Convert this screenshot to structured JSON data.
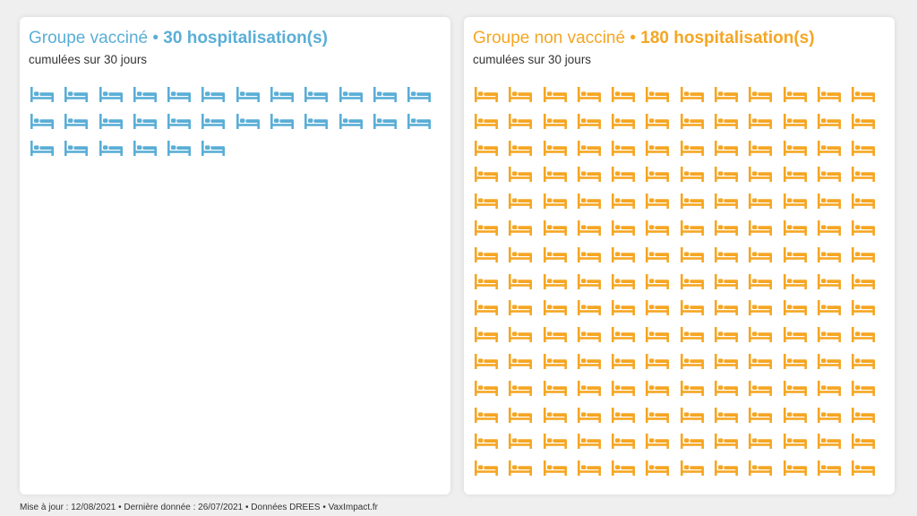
{
  "panels": [
    {
      "id": "vaccinated",
      "group_label": "Groupe vacciné",
      "separator": "•",
      "count_label": "30 hospitalisation(s)",
      "subtitle": "cumulées sur 30 jours",
      "color": "#5aaed6",
      "icon": "bed-icon"
    },
    {
      "id": "unvaccinated",
      "group_label": "Groupe non vacciné",
      "separator": "•",
      "count_label": "180 hospitalisation(s)",
      "subtitle": "cumulées sur 30 jours",
      "color": "#f5a623",
      "icon": "bed-icon"
    }
  ],
  "chart_data": {
    "type": "table",
    "categories": [
      "Groupe vacciné",
      "Groupe non vacciné"
    ],
    "values": [
      30,
      180
    ]
  },
  "footer": {
    "text": "Mise à jour : 12/08/2021 • Dernière donnée : 26/07/2021 • Données DREES • VaxImpact.fr"
  }
}
